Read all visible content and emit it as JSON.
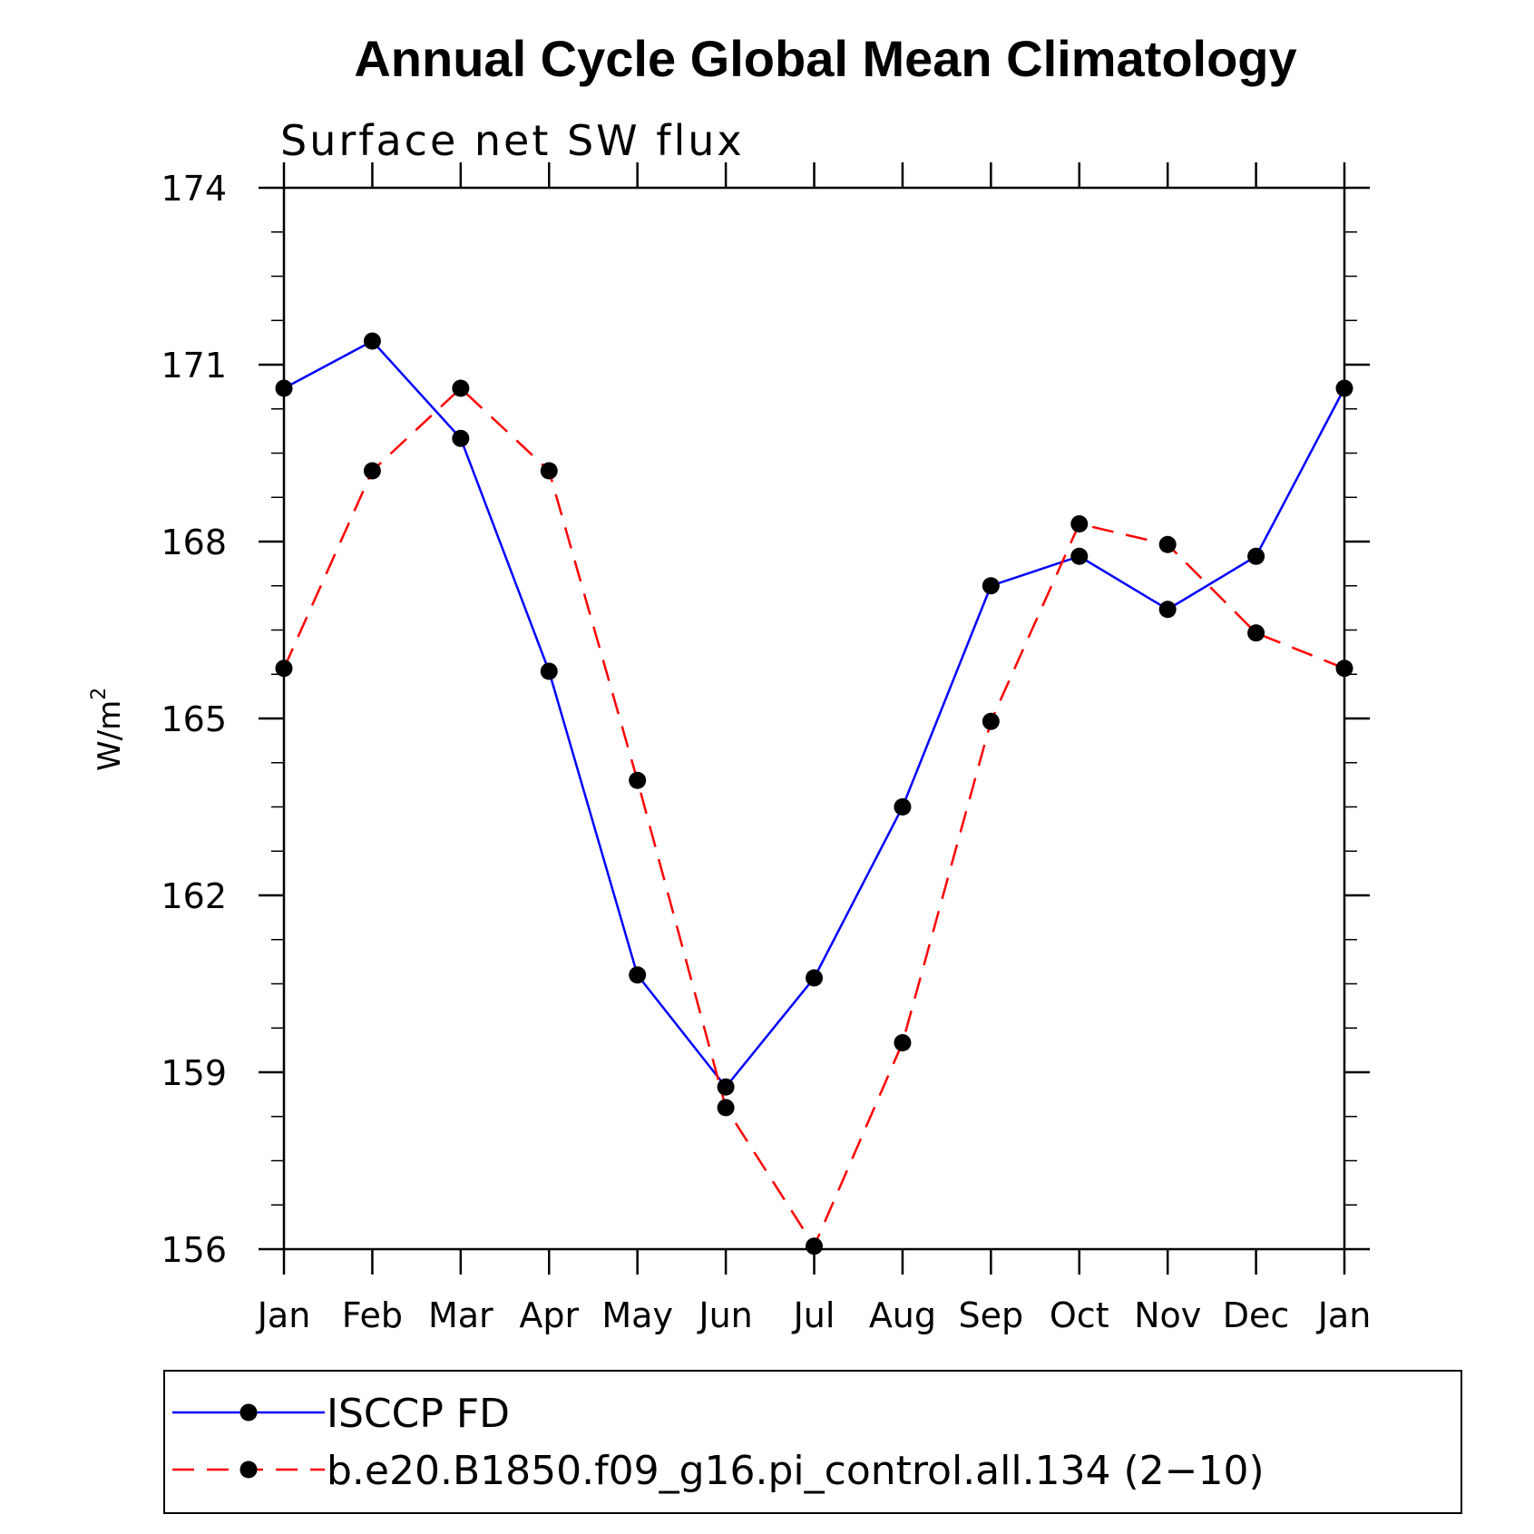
{
  "chart_data": {
    "type": "line",
    "title": "Annual Cycle Global Mean Climatology",
    "subtitle": "Surface net SW flux",
    "ylabel": "W/m",
    "ylabel_superscript": "2",
    "ylim": [
      156,
      174
    ],
    "yticks": [
      "174",
      "171",
      "168",
      "165",
      "162",
      "159",
      "156"
    ],
    "ytick_values": [
      174,
      171,
      168,
      165,
      162,
      159,
      156
    ],
    "categories": [
      "Jan",
      "Feb",
      "Mar",
      "Apr",
      "May",
      "Jun",
      "Jul",
      "Aug",
      "Sep",
      "Oct",
      "Nov",
      "Dec",
      "Jan"
    ],
    "legend_position": "bottom",
    "grid": false,
    "series": [
      {
        "name": "ISCCP FD",
        "color": "#0000ff",
        "dash": "solid",
        "marker": "filled-circle",
        "values": [
          170.6,
          171.4,
          169.75,
          165.8,
          160.65,
          158.75,
          160.6,
          163.5,
          167.25,
          167.75,
          166.85,
          167.75,
          170.6
        ]
      },
      {
        "name": "b.e20.B1850.f09_g16.pi_control.all.134 (2−10)",
        "color": "#ff0000",
        "dash": "dashed",
        "marker": "filled-circle",
        "values": [
          165.85,
          169.2,
          170.6,
          169.2,
          163.95,
          158.4,
          156.05,
          159.5,
          164.95,
          168.3,
          167.95,
          166.45,
          165.85
        ]
      }
    ]
  }
}
